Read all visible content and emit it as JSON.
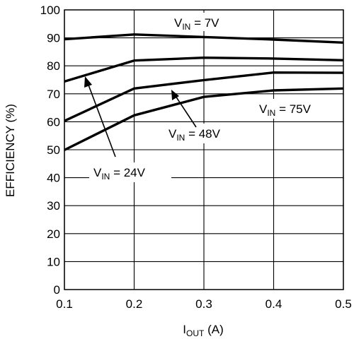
{
  "chart_data": {
    "type": "line",
    "ylabel": "EFFICIENCY (%)",
    "xlabel": {
      "main": "I",
      "sub": "OUT",
      "suffix": " (A)"
    },
    "xlim": [
      0.1,
      0.5
    ],
    "ylim": [
      0,
      100
    ],
    "x_ticks": [
      "0.1",
      "0.2",
      "0.3",
      "0.4",
      "0.5"
    ],
    "y_ticks": [
      "0",
      "10",
      "20",
      "30",
      "40",
      "50",
      "60",
      "70",
      "80",
      "90",
      "100"
    ],
    "grid": true,
    "series": [
      {
        "name": "7V",
        "x": [
          0.1,
          0.2,
          0.3,
          0.4,
          0.5
        ],
        "y": [
          89.5,
          91.2,
          90.3,
          89.4,
          88.3
        ]
      },
      {
        "name": "24V",
        "x": [
          0.1,
          0.2,
          0.3,
          0.4,
          0.5
        ],
        "y": [
          74.4,
          81.9,
          82.9,
          82.6,
          82.0
        ]
      },
      {
        "name": "48V",
        "x": [
          0.1,
          0.2,
          0.3,
          0.4,
          0.5
        ],
        "y": [
          60.3,
          71.9,
          74.9,
          77.6,
          77.5
        ]
      },
      {
        "name": "75V",
        "x": [
          0.1,
          0.2,
          0.3,
          0.4,
          0.5
        ],
        "y": [
          49.9,
          62.3,
          68.9,
          71.2,
          71.9
        ]
      }
    ],
    "annotations": [
      {
        "series": "7V",
        "prefix": "V",
        "sub": "IN",
        "text": " = 7V"
      },
      {
        "series": "75V",
        "prefix": "V",
        "sub": "IN",
        "text": " = 75V"
      },
      {
        "series": "48V",
        "prefix": "V",
        "sub": "IN",
        "text": " = 48V"
      },
      {
        "series": "24V",
        "prefix": "V",
        "sub": "IN",
        "text": " = 24V"
      }
    ]
  }
}
